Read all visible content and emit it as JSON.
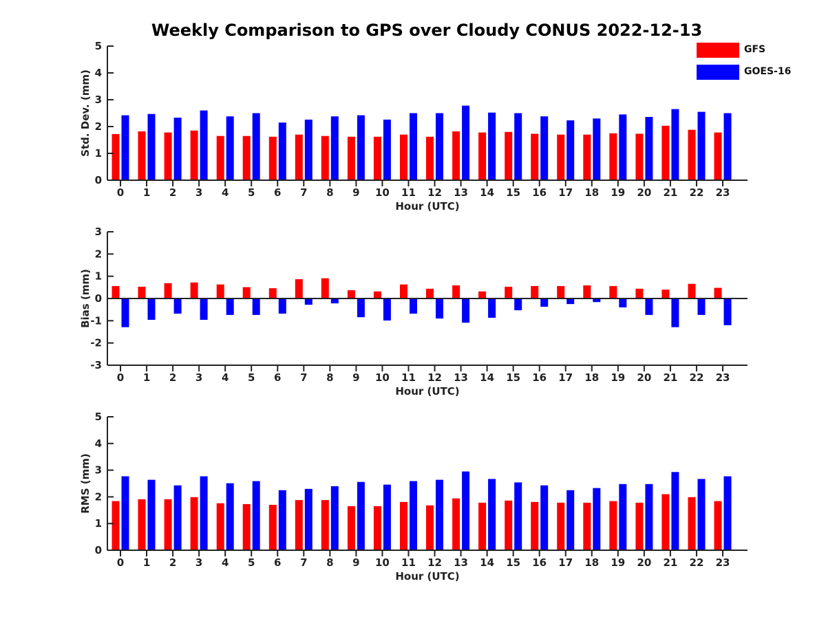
{
  "title": "Weekly Comparison to GPS over Cloudy CONUS 2022-12-13",
  "legend": [
    {
      "name": "GFS",
      "color": "#ff0000"
    },
    {
      "name": "GOES-16",
      "color": "#0000ff"
    }
  ],
  "chart_data": [
    {
      "type": "bar",
      "xlabel": "Hour (UTC)",
      "ylabel": "Std. Dev. (mm)",
      "ylim": [
        0,
        5
      ],
      "yticks": [
        0,
        1,
        2,
        3,
        4,
        5
      ],
      "categories": [
        "0",
        "1",
        "2",
        "3",
        "4",
        "5",
        "6",
        "7",
        "8",
        "9",
        "10",
        "11",
        "12",
        "13",
        "14",
        "15",
        "16",
        "17",
        "18",
        "19",
        "20",
        "21",
        "22",
        "23"
      ],
      "series": [
        {
          "name": "GFS",
          "color": "#ff0000",
          "values": [
            1.72,
            1.82,
            1.78,
            1.85,
            1.65,
            1.65,
            1.62,
            1.7,
            1.65,
            1.62,
            1.62,
            1.7,
            1.62,
            1.82,
            1.78,
            1.8,
            1.73,
            1.7,
            1.7,
            1.75,
            1.73,
            2.03,
            1.88,
            1.78
          ]
        },
        {
          "name": "GOES-16",
          "color": "#0000ff",
          "values": [
            2.42,
            2.47,
            2.33,
            2.6,
            2.38,
            2.5,
            2.15,
            2.26,
            2.38,
            2.42,
            2.26,
            2.5,
            2.5,
            2.78,
            2.52,
            2.5,
            2.38,
            2.23,
            2.3,
            2.45,
            2.36,
            2.65,
            2.55,
            2.5
          ]
        }
      ]
    },
    {
      "type": "bar",
      "xlabel": "Hour (UTC)",
      "ylabel": "Bias (mm)",
      "ylim": [
        -3,
        3
      ],
      "yticks": [
        -3,
        -2,
        -1,
        0,
        1,
        2,
        3
      ],
      "categories": [
        "0",
        "1",
        "2",
        "3",
        "4",
        "5",
        "6",
        "7",
        "8",
        "9",
        "10",
        "11",
        "12",
        "13",
        "14",
        "15",
        "16",
        "17",
        "18",
        "19",
        "20",
        "21",
        "22",
        "23"
      ],
      "series": [
        {
          "name": "GFS",
          "color": "#ff0000",
          "values": [
            0.56,
            0.53,
            0.69,
            0.72,
            0.63,
            0.51,
            0.46,
            0.87,
            0.91,
            0.37,
            0.32,
            0.63,
            0.44,
            0.59,
            0.32,
            0.53,
            0.56,
            0.56,
            0.59,
            0.56,
            0.44,
            0.4,
            0.66,
            0.48
          ]
        },
        {
          "name": "GOES-16",
          "color": "#0000ff",
          "values": [
            -1.29,
            -0.96,
            -0.68,
            -0.96,
            -0.74,
            -0.74,
            -0.68,
            -0.28,
            -0.22,
            -0.84,
            -0.99,
            -0.68,
            -0.9,
            -1.09,
            -0.87,
            -0.53,
            -0.37,
            -0.25,
            -0.16,
            -0.4,
            -0.74,
            -1.29,
            -0.74,
            -1.2
          ]
        }
      ]
    },
    {
      "type": "bar",
      "xlabel": "Hour (UTC)",
      "ylabel": "RMS (mm)",
      "ylim": [
        0,
        5
      ],
      "yticks": [
        0,
        1,
        2,
        3,
        4,
        5
      ],
      "categories": [
        "0",
        "1",
        "2",
        "3",
        "4",
        "5",
        "6",
        "7",
        "8",
        "9",
        "10",
        "11",
        "12",
        "13",
        "14",
        "15",
        "16",
        "17",
        "18",
        "19",
        "20",
        "21",
        "22",
        "23"
      ],
      "series": [
        {
          "name": "GFS",
          "color": "#ff0000",
          "values": [
            1.84,
            1.91,
            1.91,
            1.99,
            1.76,
            1.73,
            1.7,
            1.88,
            1.88,
            1.65,
            1.65,
            1.81,
            1.68,
            1.94,
            1.78,
            1.86,
            1.81,
            1.78,
            1.78,
            1.84,
            1.78,
            2.1,
            1.99,
            1.84
          ]
        },
        {
          "name": "GOES-16",
          "color": "#0000ff",
          "values": [
            2.77,
            2.64,
            2.43,
            2.77,
            2.51,
            2.59,
            2.25,
            2.3,
            2.4,
            2.56,
            2.46,
            2.59,
            2.64,
            2.95,
            2.67,
            2.54,
            2.43,
            2.25,
            2.33,
            2.48,
            2.48,
            2.93,
            2.67,
            2.77
          ]
        }
      ]
    }
  ]
}
